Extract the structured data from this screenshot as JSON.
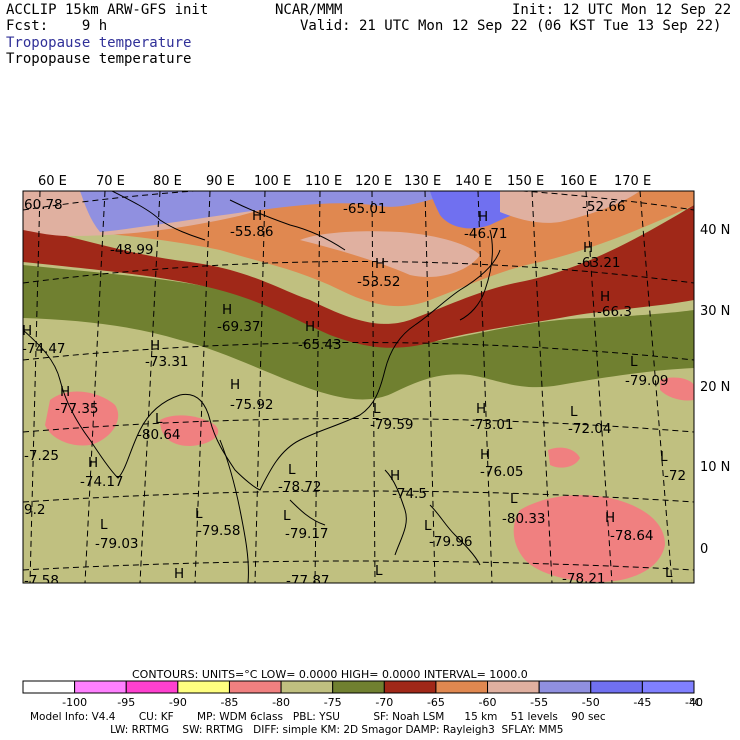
{
  "header": {
    "model_line": "ACCLIP 15km ARW-GFS init",
    "fcst_line": "Fcst:    9 h",
    "var_title_1": "Tropopause temperature",
    "var_title_2": "Tropopause temperature",
    "center": "NCAR/MMM",
    "init": "Init: 12 UTC Mon 12 Sep 22",
    "valid": "Valid: 21 UTC Mon 12 Sep 22 (06 KST Tue 13 Sep 22)"
  },
  "map": {
    "lon_labels": [
      "60 E",
      "70 E",
      "80 E",
      "90 E",
      "100 E",
      "110 E",
      "120 E",
      "130 E",
      "140 E",
      "150 E",
      "160 E",
      "170 E"
    ],
    "lat_labels": [
      "40 N",
      "30 N",
      "20 N",
      "10 N",
      "0"
    ],
    "extrema": [
      {
        "t": "60.78"
      },
      {
        "t": "-48.99"
      },
      {
        "t": "H"
      },
      {
        "t": "-55.86"
      },
      {
        "t": "-65.01"
      },
      {
        "t": "H"
      },
      {
        "t": "-46.71"
      },
      {
        "t": "-52.66"
      },
      {
        "t": "H"
      },
      {
        "t": "-63.21"
      },
      {
        "t": "H"
      },
      {
        "t": "-53.52"
      },
      {
        "t": "H"
      },
      {
        "t": "-66.3"
      },
      {
        "t": "H"
      },
      {
        "t": "-69.37"
      },
      {
        "t": "H"
      },
      {
        "t": "-65.43"
      },
      {
        "t": "H"
      },
      {
        "t": "-74.47"
      },
      {
        "t": "H"
      },
      {
        "t": "-73.31"
      },
      {
        "t": "L"
      },
      {
        "t": "-79.09"
      },
      {
        "t": "H"
      },
      {
        "t": "-77.35"
      },
      {
        "t": "H"
      },
      {
        "t": "-75.92"
      },
      {
        "t": "L"
      },
      {
        "t": "-80.64"
      },
      {
        "t": "L"
      },
      {
        "t": "-79.59"
      },
      {
        "t": "H"
      },
      {
        "t": "-73.01"
      },
      {
        "t": "L"
      },
      {
        "t": "-72.04"
      },
      {
        "t": "-7.25"
      },
      {
        "t": "H"
      },
      {
        "t": "-74.17"
      },
      {
        "t": "L"
      },
      {
        "t": "-78.72"
      },
      {
        "t": "H"
      },
      {
        "t": "-76.05"
      },
      {
        "t": "L"
      },
      {
        "t": "-72"
      },
      {
        "t": "H"
      },
      {
        "t": "-74.5"
      },
      {
        "t": "L"
      },
      {
        "t": "-80.33"
      },
      {
        "t": "H"
      },
      {
        "t": "-78.64"
      },
      {
        "t": "9.2"
      },
      {
        "t": "L"
      },
      {
        "t": "-79.03"
      },
      {
        "t": "L"
      },
      {
        "t": "-79.58"
      },
      {
        "t": "L"
      },
      {
        "t": "-79.17"
      },
      {
        "t": "L"
      },
      {
        "t": "-79.96"
      },
      {
        "t": "-7.58"
      },
      {
        "t": "H"
      },
      {
        "t": "-77.87"
      },
      {
        "t": "L"
      },
      {
        "t": "-78.21"
      },
      {
        "t": "L"
      }
    ]
  },
  "colorbar": {
    "contours_line": "CONTOURS:  UNITS=°C  LOW=  0.0000      HIGH=  0.0000      INTERVAL=   1000.0",
    "unit": "°C",
    "ticks": [
      "-100",
      "-95",
      "-90",
      "-85",
      "-80",
      "-75",
      "-70",
      "-65",
      "-60",
      "-55",
      "-50",
      "-45",
      "-40"
    ],
    "colors": [
      "#ffffff",
      "#ff80ff",
      "#ff40d0",
      "#ffff80",
      "#f08080",
      "#c0c080",
      "#708030",
      "#a02818",
      "#e08850",
      "#e0b0a0",
      "#9090e0",
      "#7070f0",
      "#8080ff"
    ]
  },
  "model_info": {
    "line1": "Model Info: V4.4       CU: KF       MP: WDM 6class   PBL: YSU          SF: Noah LSM      15 km    51 levels    90 sec",
    "line2": "                        LW: RRTMG    SW: RRTMG   DIFF: simple KM: 2D Smagor DAMP: Rayleigh3  SFLAY: MM5"
  }
}
